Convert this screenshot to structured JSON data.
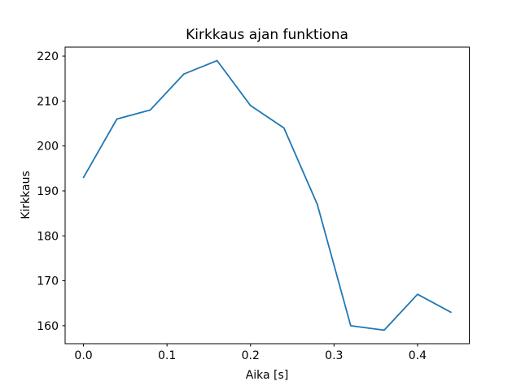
{
  "figure": {
    "background_color": "#ffffff",
    "text_color": "#000000",
    "spine_color": "#000000"
  },
  "chart_data": {
    "type": "line",
    "title": "Kirkkaus ajan funktiona",
    "xlabel": "Aika [s]",
    "ylabel": "Kirkkaus",
    "x": [
      0.0,
      0.04,
      0.08,
      0.12,
      0.16,
      0.2,
      0.24,
      0.28,
      0.32,
      0.36,
      0.4,
      0.44
    ],
    "y": [
      193,
      206,
      208,
      216,
      219,
      209,
      204,
      187,
      160,
      159,
      167,
      163
    ],
    "xlim": [
      -0.022,
      0.462
    ],
    "ylim": [
      156,
      222
    ],
    "xticks": [
      0.0,
      0.1,
      0.2,
      0.3,
      0.4
    ],
    "xtick_labels": [
      "0.0",
      "0.1",
      "0.2",
      "0.3",
      "0.4"
    ],
    "yticks": [
      160,
      170,
      180,
      190,
      200,
      210,
      220
    ],
    "ytick_labels": [
      "160",
      "170",
      "180",
      "190",
      "200",
      "210",
      "220"
    ],
    "line_color": "#1f77b4",
    "grid": false,
    "legend_position": "none"
  }
}
